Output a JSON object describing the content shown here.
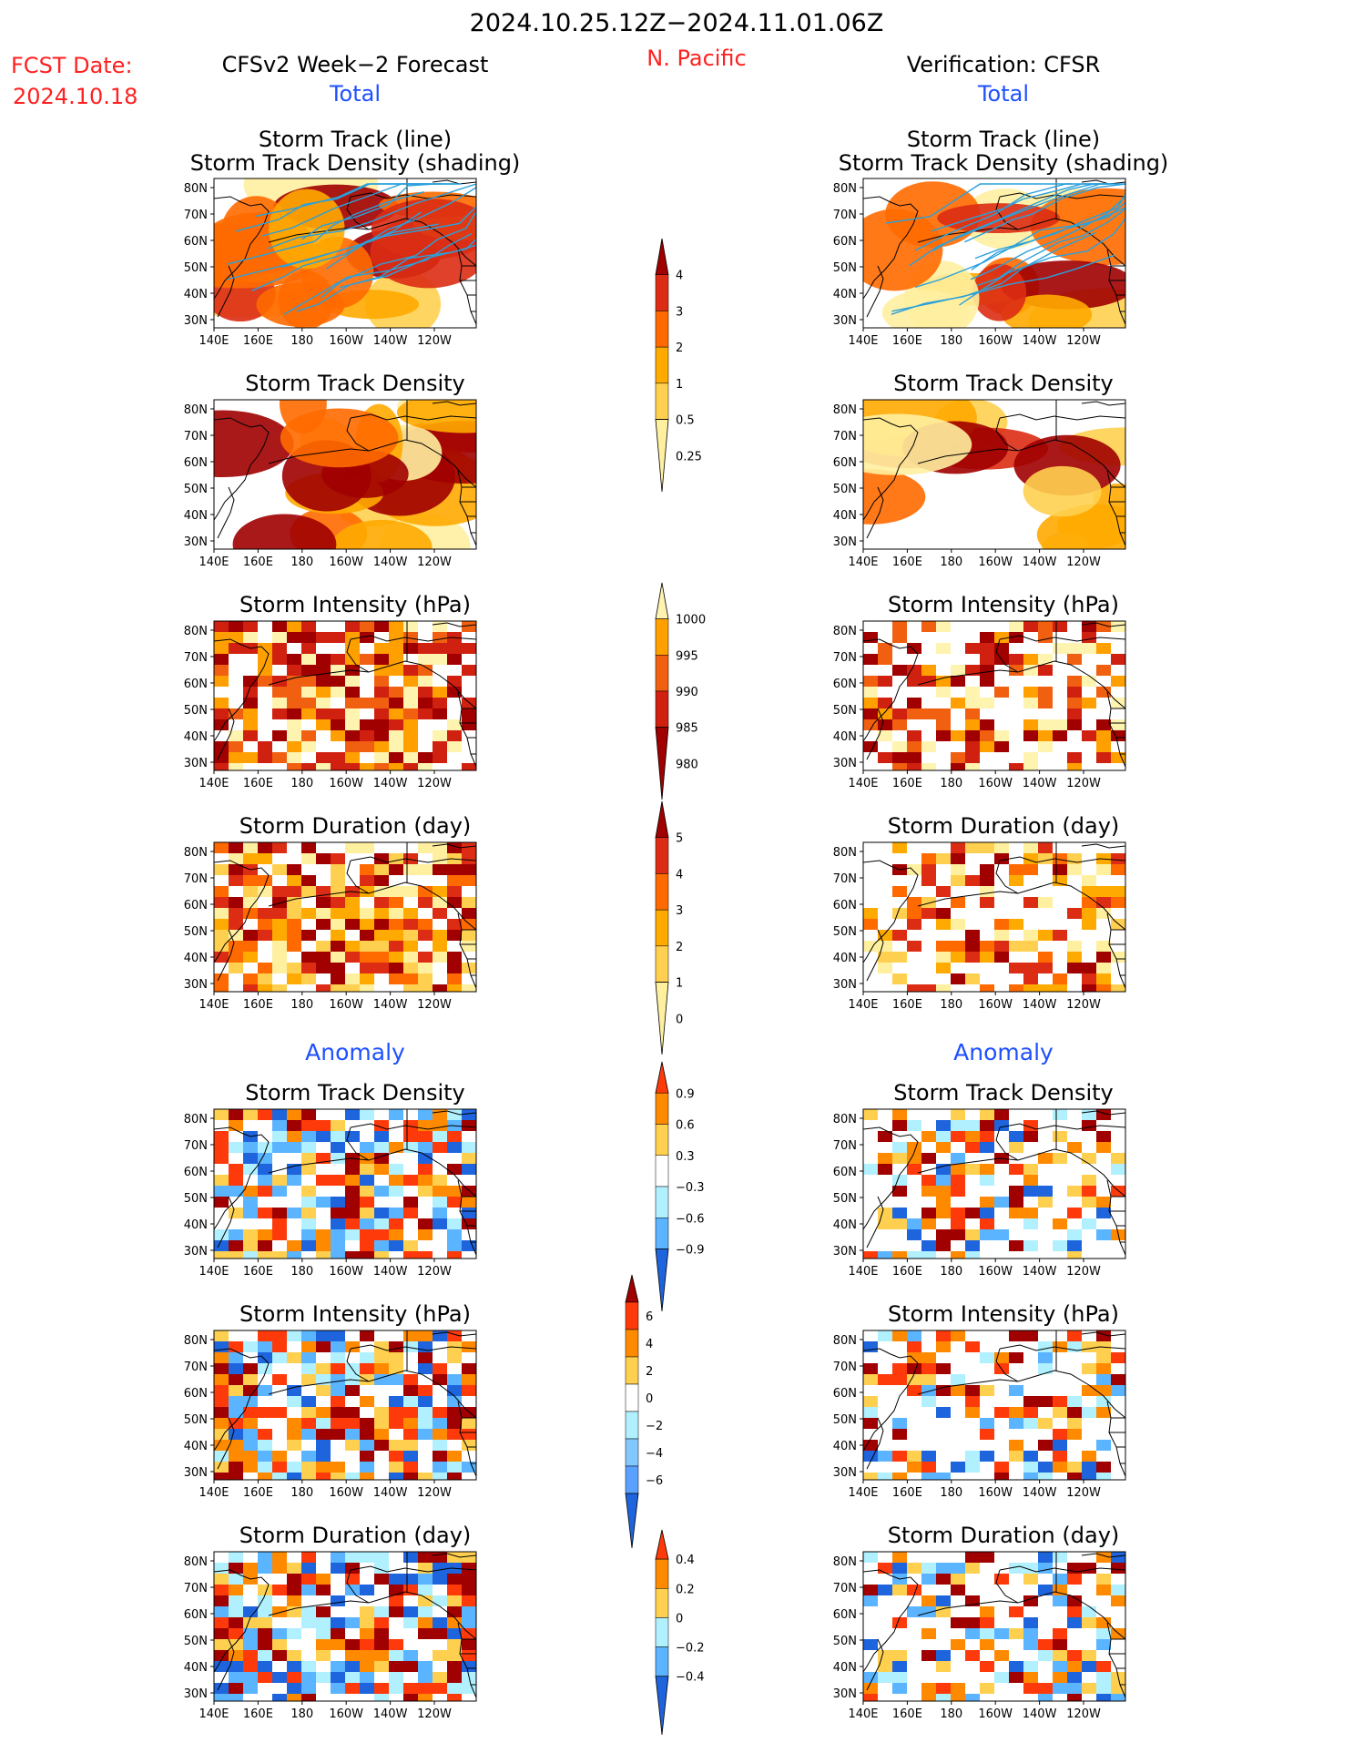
{
  "header": {
    "period": "2024.10.25.12Z−2024.11.01.06Z",
    "fcst_label": "FCST Date:",
    "fcst_date": "2024.10.18",
    "forecast_label": "CFSv2 Week−2 Forecast",
    "region": "N. Pacific",
    "verification_label": "Verification: CFSR",
    "total_label": "Total",
    "anomaly_label": "Anomaly"
  },
  "map_axes": {
    "lat_labels": [
      "80N",
      "70N",
      "60N",
      "50N",
      "40N",
      "30N"
    ],
    "lon_labels": [
      "140E",
      "160E",
      "180",
      "160W",
      "140W",
      "120W"
    ]
  },
  "panels": {
    "left": [
      {
        "title": "Storm Track (line)",
        "subtitle": "Storm Track Density (shading)",
        "field": "density",
        "section": "total"
      },
      {
        "title": "Storm Track Density",
        "field": "density",
        "section": "total"
      },
      {
        "title": "Storm Intensity (hPa)",
        "field": "intensity",
        "section": "total"
      },
      {
        "title": "Storm Duration (day)",
        "field": "duration",
        "section": "total"
      },
      {
        "title": "Storm Track Density",
        "field": "density_anomaly",
        "section": "anomaly"
      },
      {
        "title": "Storm Intensity (hPa)",
        "field": "intensity_anomaly",
        "section": "anomaly"
      },
      {
        "title": "Storm Duration (day)",
        "field": "duration_anomaly",
        "section": "anomaly"
      }
    ],
    "right": [
      {
        "title": "Storm Track (line)",
        "subtitle": "Storm Track Density (shading)",
        "field": "density",
        "section": "total"
      },
      {
        "title": "Storm Track Density",
        "field": "density",
        "section": "total"
      },
      {
        "title": "Storm Intensity (hPa)",
        "field": "intensity",
        "section": "total"
      },
      {
        "title": "Storm Duration (day)",
        "field": "duration",
        "section": "total"
      },
      {
        "title": "Storm Track Density",
        "field": "density_anomaly",
        "section": "anomaly"
      },
      {
        "title": "Storm Intensity (hPa)",
        "field": "intensity_anomaly",
        "section": "anomaly"
      },
      {
        "title": "Storm Duration (day)",
        "field": "duration_anomaly",
        "section": "anomaly"
      }
    ]
  },
  "colorbars": [
    {
      "name": "density",
      "labels": [
        "4",
        "3",
        "2",
        "1",
        "0.5",
        "0.25"
      ],
      "colors": [
        "#a00000",
        "#dc2c14",
        "#ff6a00",
        "#ffaa00",
        "#ffd050",
        "#fff0a0"
      ]
    },
    {
      "name": "intensity",
      "labels": [
        "1000",
        "995",
        "990",
        "985",
        "980"
      ],
      "colors": [
        "#fff3b0",
        "#ffa000",
        "#f06010",
        "#d02010",
        "#a00000"
      ]
    },
    {
      "name": "duration",
      "labels": [
        "5",
        "4",
        "3",
        "2",
        "1",
        "0"
      ],
      "colors": [
        "#a00000",
        "#dc2c14",
        "#ff6a00",
        "#ffaa00",
        "#ffd050",
        "#fff0a0"
      ]
    },
    {
      "name": "density_anomaly",
      "labels": [
        "0.9",
        "0.6",
        "0.3",
        "−0.3",
        "−0.6",
        "−0.9"
      ],
      "colors": [
        "#ff3a0a",
        "#ff8a00",
        "#ffd050",
        "#ffffff",
        "#b0f0ff",
        "#5ab4ff",
        "#1e64dc"
      ]
    },
    {
      "name": "intensity_anomaly",
      "labels": [
        "6",
        "4",
        "2",
        "0",
        "−2",
        "−4",
        "−6"
      ],
      "colors": [
        "#a00000",
        "#ff3a0a",
        "#ff8a00",
        "#ffd050",
        "#ffffff",
        "#b0f0ff",
        "#82c8ff",
        "#5aa0ff",
        "#1e64dc"
      ]
    },
    {
      "name": "duration_anomaly",
      "labels": [
        "0.4",
        "0.2",
        "0",
        "−0.2",
        "−0.4"
      ],
      "colors": [
        "#ff3a0a",
        "#ff8a00",
        "#ffd050",
        "#b0f0ff",
        "#5ab4ff",
        "#1e64dc"
      ]
    }
  ]
}
